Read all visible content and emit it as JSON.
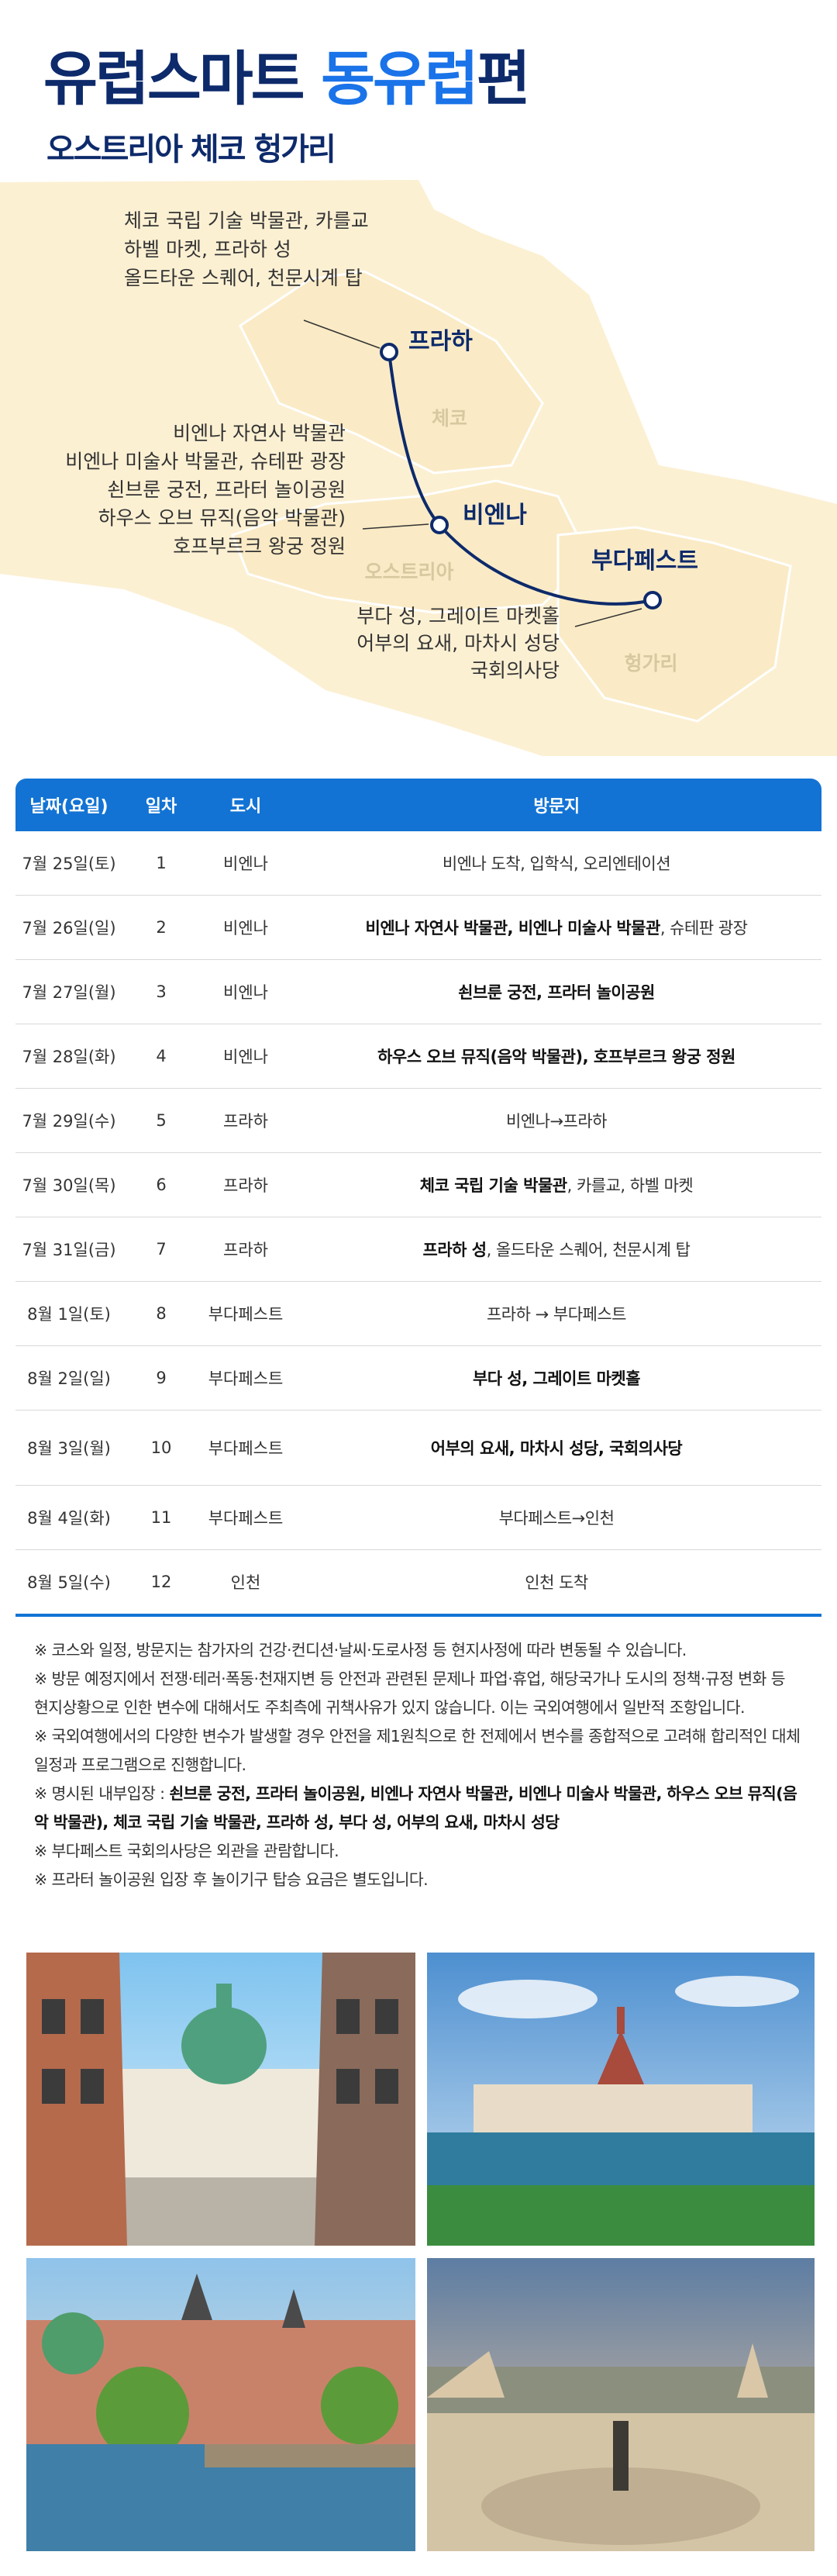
{
  "header": {
    "title_a": "유럽스마트",
    "title_b": "동유럽",
    "title_c": "편",
    "subtitle": "오스트리아 체코 헝가리"
  },
  "map": {
    "cities": [
      {
        "name": "프라하"
      },
      {
        "name": "비엔나"
      },
      {
        "name": "부다페스트"
      }
    ],
    "countries": [
      "체코",
      "오스트리아",
      "헝가리"
    ],
    "prague_sights": [
      "체코 국립 기술 박물관, 카를교",
      "하벨 마켓, 프라하 성",
      "올드타운 스퀘어, 천문시계 탑"
    ],
    "vienna_sights": [
      "비엔나 자연사 박물관",
      "비엔나 미술사 박물관, 슈테판 광장",
      "쇤브룬 궁전, 프라터 놀이공원",
      "하우스 오브 뮤직(음악 박물관)",
      "호프부르크 왕궁 정원"
    ],
    "budapest_sights": [
      "부다 성, 그레이트 마켓홀",
      "어부의 요새, 마차시 성당",
      "국회의사당"
    ]
  },
  "table": {
    "headers": [
      "날짜(요일)",
      "일차",
      "도시",
      "방문지"
    ],
    "rows": [
      {
        "date": "7월 25일(토)",
        "day": "1",
        "city": "비엔나",
        "visit": [
          {
            "text": "비엔나 도착, 입학식, 오리엔테이션",
            "bold": false
          }
        ]
      },
      {
        "date": "7월 26일(일)",
        "day": "2",
        "city": "비엔나",
        "visit": [
          {
            "text": "비엔나 자연사 박물관, 비엔나 미술사 박물관",
            "bold": true
          },
          {
            "text": ", 슈테판 광장",
            "bold": false
          }
        ]
      },
      {
        "date": "7월 27일(월)",
        "day": "3",
        "city": "비엔나",
        "visit": [
          {
            "text": "쇤브룬 궁전, 프라터 놀이공원",
            "bold": true
          }
        ]
      },
      {
        "date": "7월 28일(화)",
        "day": "4",
        "city": "비엔나",
        "visit": [
          {
            "text": "하우스 오브 뮤직(음악 박물관), 호프부르크 왕궁 정원",
            "bold": true
          }
        ]
      },
      {
        "date": "7월 29일(수)",
        "day": "5",
        "city": "프라하",
        "visit": [
          {
            "text": "비엔나→프라하",
            "bold": false
          }
        ]
      },
      {
        "date": "7월 30일(목)",
        "day": "6",
        "city": "프라하",
        "visit": [
          {
            "text": "체코 국립 기술 박물관",
            "bold": true
          },
          {
            "text": ", 카를교, 하벨 마켓",
            "bold": false
          }
        ]
      },
      {
        "date": "7월 31일(금)",
        "day": "7",
        "city": "프라하",
        "visit": [
          {
            "text": "프라하 성",
            "bold": true
          },
          {
            "text": ", 올드타운 스퀘어, 천문시계 탑",
            "bold": false
          }
        ]
      },
      {
        "date": "8월 1일(토)",
        "day": "8",
        "city": "부다페스트",
        "visit": [
          {
            "text": "프라하 → 부다페스트",
            "bold": false
          }
        ]
      },
      {
        "date": "8월 2일(일)",
        "day": "9",
        "city": "부다페스트",
        "visit": [
          {
            "text": "부다 성, 그레이트 마켓홀",
            "bold": true
          }
        ]
      },
      {
        "date": "8월 3일(월)",
        "day": "10",
        "city": "부다페스트",
        "visit": [
          {
            "text": "어부의 요새, 마차시 성당, 국회의사당",
            "bold": true
          }
        ]
      },
      {
        "date": "8월 4일(화)",
        "day": "11",
        "city": "부다페스트",
        "visit": [
          {
            "text": "부다페스트→인천",
            "bold": false
          }
        ]
      },
      {
        "date": "8월 5일(수)",
        "day": "12",
        "city": "인천",
        "visit": [
          {
            "text": "인천 도착",
            "bold": false
          }
        ]
      }
    ]
  },
  "notes": [
    [
      {
        "text": "※ 코스와 일정, 방문지는 참가자의 건강·컨디션·날씨·도로사정 등 현지사정에 따라 변동될 수 있습니다.",
        "bold": false
      }
    ],
    [
      {
        "text": "※ 방문 예정지에서 전쟁·테러·폭동·천재지변 등 안전과 관련된 문제나 파업·휴업, 해당국가나 도시의 정책·규정 변화 등 현지상황으로 인한 변수에 대해서도 주최측에 귀책사유가 있지 않습니다. 이는 국외여행에서 일반적 조항입니다.",
        "bold": false
      }
    ],
    [
      {
        "text": "※ 국외여행에서의 다양한 변수가 발생할 경우 안전을 제1원칙으로 한 전제에서 변수를 종합적으로 고려해 합리적인 대체 일정과 프로그램으로 진행합니다.",
        "bold": false
      }
    ],
    [
      {
        "text": "※ 명시된 내부입장 : ",
        "bold": false
      },
      {
        "text": "쇤브룬 궁전, 프라터 놀이공원, 비엔나 자연사 박물관, 비엔나 미술사 박물관, 하우스 오브 뮤직(음악 박물관), 체코 국립 기술 박물관, 프라하 성, 부다 성, 어부의 요새, 마차시 성당",
        "bold": true
      }
    ],
    [
      {
        "text": "※ 부다페스트 국회의사당은 외관을 관람합니다.",
        "bold": false
      }
    ],
    [
      {
        "text": "※ 프라터 놀이공원 입장 후 놀이기구 탑승 요금은 별도입니다.",
        "bold": false
      }
    ]
  ]
}
